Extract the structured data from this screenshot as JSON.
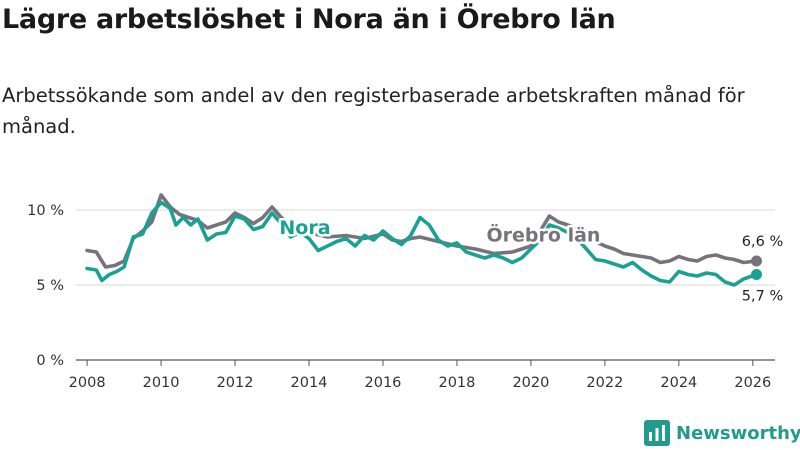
{
  "title": "Lägre arbetslöshet i Nora än i Örebro län",
  "subtitle": "Arbetssökande som andel av den registerbaserade arbetskraften månad för månad.",
  "brand": "Newsworthy",
  "colors": {
    "nora": "#1aa195",
    "orebro": "#77737a",
    "grid": "#d9d9d9",
    "axis": "#555555",
    "brand": "#229b8f"
  },
  "icons": {
    "logo": "bar-chart-logo-icon"
  },
  "chart_data": {
    "type": "line",
    "title": "Lägre arbetslöshet i Nora än i Örebro län",
    "xlabel": "",
    "ylabel": "",
    "xlim": [
      2007.7,
      2026.6
    ],
    "ylim": [
      0,
      10
    ],
    "x_ticks": [
      {
        "value": 2008,
        "label": "2008"
      },
      {
        "value": 2010,
        "label": "2010"
      },
      {
        "value": 2012,
        "label": "2012"
      },
      {
        "value": 2014,
        "label": "2014"
      },
      {
        "value": 2016,
        "label": "2016"
      },
      {
        "value": 2018,
        "label": "2018"
      },
      {
        "value": 2020,
        "label": "2020"
      },
      {
        "value": 2022,
        "label": "2022"
      },
      {
        "value": 2024,
        "label": "2024"
      },
      {
        "value": 2026,
        "label": "2026"
      }
    ],
    "y_ticks": [
      {
        "value": 0,
        "label": "0 %"
      },
      {
        "value": 5,
        "label": "5 %"
      },
      {
        "value": 10,
        "label": "10 %"
      }
    ],
    "series": [
      {
        "name": "Örebro län",
        "label": "Örebro län",
        "end_label": "6,6 %",
        "points": [
          [
            2008.0,
            7.3
          ],
          [
            2008.25,
            7.2
          ],
          [
            2008.5,
            6.2
          ],
          [
            2008.75,
            6.3
          ],
          [
            2009.0,
            6.6
          ],
          [
            2009.25,
            8.1
          ],
          [
            2009.5,
            8.6
          ],
          [
            2009.75,
            9.2
          ],
          [
            2010.0,
            11.0
          ],
          [
            2010.25,
            10.2
          ],
          [
            2010.5,
            9.7
          ],
          [
            2010.75,
            9.5
          ],
          [
            2011.0,
            9.3
          ],
          [
            2011.25,
            8.8
          ],
          [
            2011.5,
            9.0
          ],
          [
            2011.75,
            9.2
          ],
          [
            2012.0,
            9.8
          ],
          [
            2012.25,
            9.5
          ],
          [
            2012.5,
            9.1
          ],
          [
            2012.75,
            9.5
          ],
          [
            2013.0,
            10.2
          ],
          [
            2013.25,
            9.5
          ],
          [
            2013.5,
            9.0
          ],
          [
            2013.75,
            8.8
          ],
          [
            2014.0,
            8.5
          ],
          [
            2014.5,
            8.2
          ],
          [
            2015.0,
            8.3
          ],
          [
            2015.5,
            8.1
          ],
          [
            2016.0,
            8.4
          ],
          [
            2016.25,
            8.0
          ],
          [
            2016.5,
            7.9
          ],
          [
            2016.75,
            8.1
          ],
          [
            2017.0,
            8.2
          ],
          [
            2017.5,
            7.9
          ],
          [
            2018.0,
            7.6
          ],
          [
            2018.5,
            7.4
          ],
          [
            2019.0,
            7.1
          ],
          [
            2019.5,
            7.2
          ],
          [
            2020.0,
            7.6
          ],
          [
            2020.25,
            8.6
          ],
          [
            2020.5,
            9.6
          ],
          [
            2020.75,
            9.2
          ],
          [
            2021.0,
            9.0
          ],
          [
            2021.25,
            8.7
          ],
          [
            2021.5,
            8.3
          ],
          [
            2021.75,
            7.9
          ],
          [
            2022.0,
            7.6
          ],
          [
            2022.25,
            7.4
          ],
          [
            2022.5,
            7.1
          ],
          [
            2022.75,
            7.0
          ],
          [
            2023.0,
            6.9
          ],
          [
            2023.25,
            6.8
          ],
          [
            2023.5,
            6.5
          ],
          [
            2023.75,
            6.6
          ],
          [
            2024.0,
            6.9
          ],
          [
            2024.25,
            6.7
          ],
          [
            2024.5,
            6.6
          ],
          [
            2024.75,
            6.9
          ],
          [
            2025.0,
            7.0
          ],
          [
            2025.25,
            6.8
          ],
          [
            2025.5,
            6.7
          ],
          [
            2025.75,
            6.5
          ],
          [
            2026.1,
            6.6
          ]
        ]
      },
      {
        "name": "Nora",
        "label": "Nora",
        "end_label": "5,7 %",
        "points": [
          [
            2008.0,
            6.1
          ],
          [
            2008.25,
            6.0
          ],
          [
            2008.4,
            5.3
          ],
          [
            2008.6,
            5.7
          ],
          [
            2008.8,
            5.9
          ],
          [
            2009.0,
            6.2
          ],
          [
            2009.25,
            8.2
          ],
          [
            2009.5,
            8.4
          ],
          [
            2009.75,
            9.8
          ],
          [
            2010.0,
            10.5
          ],
          [
            2010.25,
            10.1
          ],
          [
            2010.4,
            9.0
          ],
          [
            2010.6,
            9.5
          ],
          [
            2010.8,
            9.0
          ],
          [
            2011.0,
            9.4
          ],
          [
            2011.25,
            8.0
          ],
          [
            2011.5,
            8.4
          ],
          [
            2011.75,
            8.5
          ],
          [
            2012.0,
            9.6
          ],
          [
            2012.25,
            9.4
          ],
          [
            2012.5,
            8.7
          ],
          [
            2012.75,
            8.9
          ],
          [
            2013.0,
            9.8
          ],
          [
            2013.25,
            9.1
          ],
          [
            2013.5,
            8.2
          ],
          [
            2013.75,
            8.5
          ],
          [
            2014.0,
            8.1
          ],
          [
            2014.25,
            7.3
          ],
          [
            2014.5,
            7.6
          ],
          [
            2014.75,
            7.9
          ],
          [
            2015.0,
            8.1
          ],
          [
            2015.25,
            7.6
          ],
          [
            2015.5,
            8.3
          ],
          [
            2015.75,
            8.0
          ],
          [
            2016.0,
            8.6
          ],
          [
            2016.25,
            8.1
          ],
          [
            2016.5,
            7.7
          ],
          [
            2016.75,
            8.3
          ],
          [
            2017.0,
            9.5
          ],
          [
            2017.25,
            9.0
          ],
          [
            2017.5,
            8.0
          ],
          [
            2017.75,
            7.6
          ],
          [
            2018.0,
            7.8
          ],
          [
            2018.25,
            7.2
          ],
          [
            2018.5,
            7.0
          ],
          [
            2018.75,
            6.8
          ],
          [
            2019.0,
            7.0
          ],
          [
            2019.25,
            6.8
          ],
          [
            2019.5,
            6.5
          ],
          [
            2019.75,
            6.8
          ],
          [
            2020.0,
            7.4
          ],
          [
            2020.25,
            8.0
          ],
          [
            2020.5,
            9.0
          ],
          [
            2020.75,
            8.8
          ],
          [
            2021.0,
            8.5
          ],
          [
            2021.25,
            8.1
          ],
          [
            2021.5,
            7.4
          ],
          [
            2021.75,
            6.7
          ],
          [
            2022.0,
            6.6
          ],
          [
            2022.25,
            6.4
          ],
          [
            2022.5,
            6.2
          ],
          [
            2022.75,
            6.5
          ],
          [
            2023.0,
            6.0
          ],
          [
            2023.25,
            5.6
          ],
          [
            2023.5,
            5.3
          ],
          [
            2023.75,
            5.2
          ],
          [
            2024.0,
            5.9
          ],
          [
            2024.25,
            5.7
          ],
          [
            2024.5,
            5.6
          ],
          [
            2024.75,
            5.8
          ],
          [
            2025.0,
            5.7
          ],
          [
            2025.25,
            5.2
          ],
          [
            2025.5,
            5.0
          ],
          [
            2025.75,
            5.4
          ],
          [
            2026.1,
            5.7
          ]
        ]
      }
    ]
  }
}
